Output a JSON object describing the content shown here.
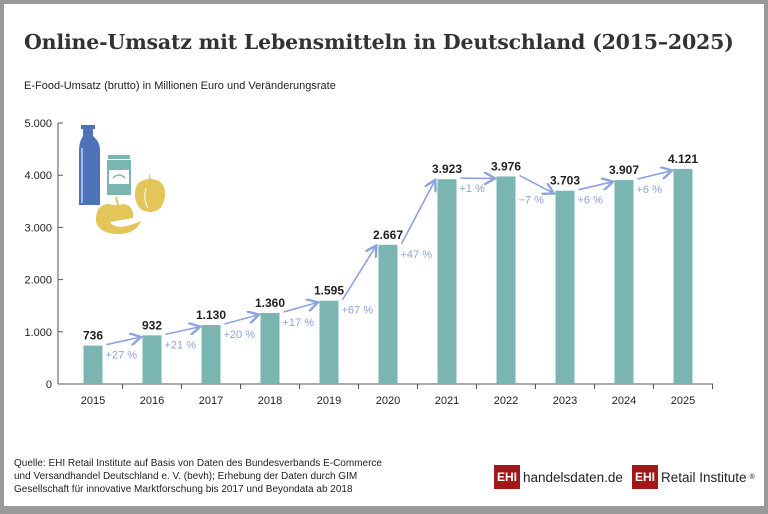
{
  "title": "Online-Umsatz mit Lebensmitteln in Deutschland (2015–2025)",
  "subtitle": "E-Food-Umsatz (brutto) in Millionen Euro und Veränderungsrate",
  "chart_data": {
    "type": "bar",
    "title": "Online-Umsatz mit Lebensmitteln in Deutschland (2015–2025)",
    "ylabel": "E-Food-Umsatz (brutto) in Millionen Euro und Veränderungsrate",
    "categories": [
      "2015",
      "2016",
      "2017",
      "2018",
      "2019",
      "2020",
      "2021",
      "2022",
      "2023",
      "2024",
      "2025"
    ],
    "values": [
      736,
      932,
      1130,
      1360,
      1595,
      2667,
      3923,
      3976,
      3703,
      3907,
      4121
    ],
    "value_labels": [
      "736",
      "932",
      "1.130",
      "1.360",
      "1.595",
      "2.667",
      "3.923",
      "3.976",
      "3.703",
      "3.907",
      "4.121"
    ],
    "change_labels": [
      "+27 %",
      "+21 %",
      "+20 %",
      "+17 %",
      "+67 %",
      "+47 %",
      "+1 %",
      "−7 %",
      "+6 %",
      "+6 %"
    ],
    "ylim": [
      0,
      5000
    ],
    "yticks": [
      "0",
      "1.000",
      "2.000",
      "3.000",
      "4.000",
      "5.000"
    ],
    "ytick_values": [
      0,
      1000,
      2000,
      3000,
      4000,
      5000
    ],
    "grid": false,
    "bar_color": "#7ab5b1",
    "arrow_color": "#8ca3dc"
  },
  "illustration_icons": [
    "bottle-icon",
    "jar-icon",
    "pepper-icon",
    "apple-icon"
  ],
  "source": "Quelle: EHI Retail Institute auf Basis von Daten des Bundesverbands E-Commerce und Versandhandel Deutschland e. V. (bevh); Erhebung der Daten durch GIM Gesellschaft für innovative Marktforschung bis 2017 und Beyondata ab 2018",
  "logos": {
    "logo1_box": "EHI",
    "logo1_text": "handelsdaten.de",
    "logo2_box": "EHI",
    "logo2_text": "Retail Institute",
    "logo2_mark": "®"
  }
}
